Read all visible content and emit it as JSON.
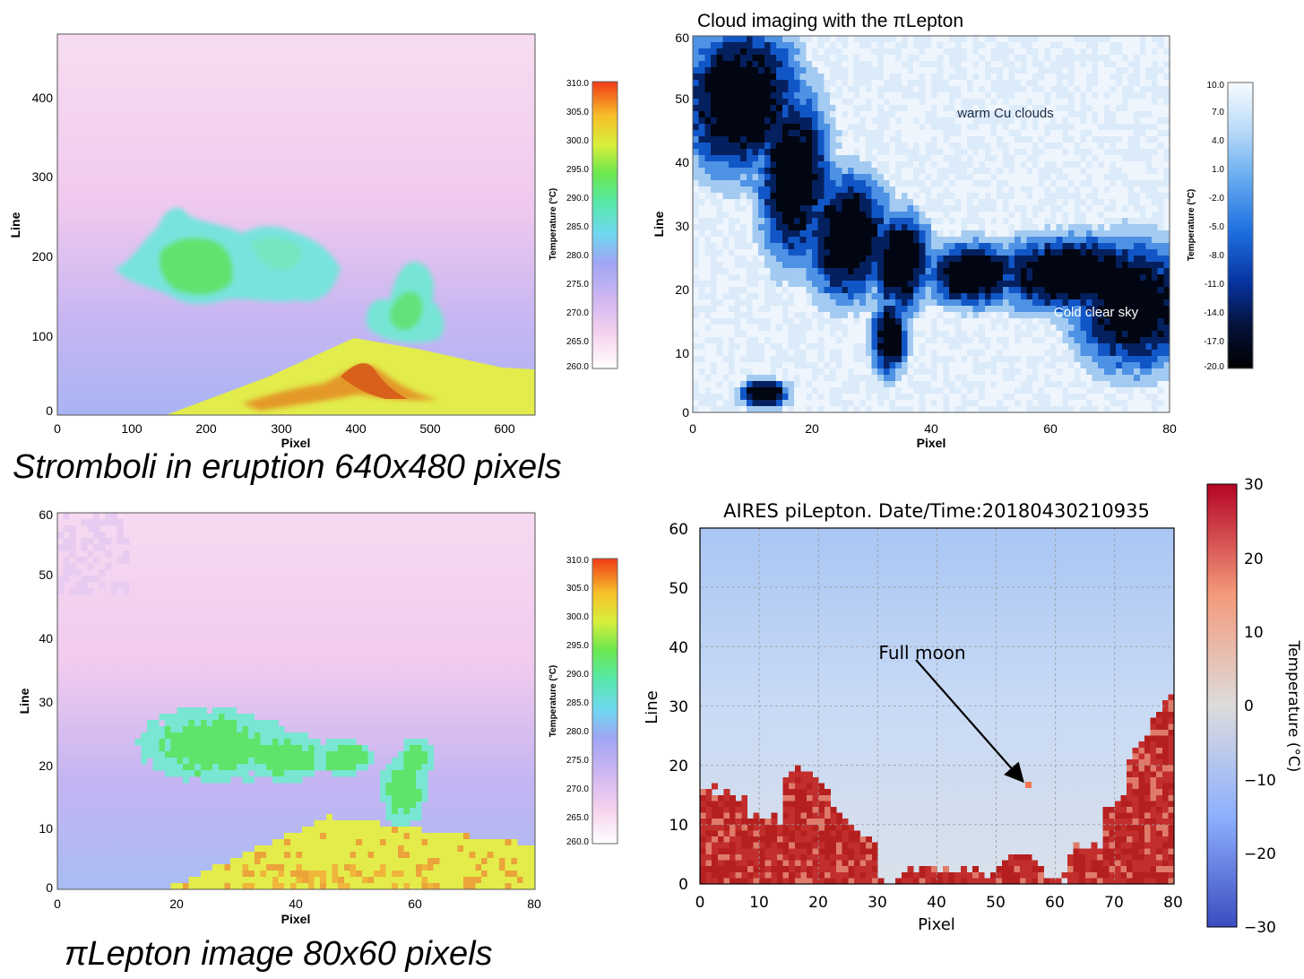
{
  "captions": {
    "full_res": "Stromboli in eruption 640x480 pixels",
    "low_res": "πLepton image 80x60 pixels"
  },
  "panels": {
    "stromboli_full": {
      "xlabel": "Pixel",
      "ylabel": "Line",
      "xticks": [
        "0",
        "100",
        "200",
        "300",
        "400",
        "500",
        "600"
      ],
      "yticks": [
        "0",
        "100",
        "200",
        "300",
        "400"
      ],
      "xlim": [
        0,
        640
      ],
      "ylim": [
        0,
        480
      ],
      "colorbar": {
        "label": "Temperature (°C)",
        "ticks": [
          "310.0",
          "305.0",
          "300.0",
          "295.0",
          "290.0",
          "285.0",
          "280.0",
          "275.0",
          "270.0",
          "265.0",
          "260.0"
        ]
      }
    },
    "stromboli_lepton": {
      "xlabel": "Pixel",
      "ylabel": "Line",
      "xticks": [
        "0",
        "20",
        "40",
        "60",
        "80"
      ],
      "yticks": [
        "0",
        "10",
        "20",
        "30",
        "40",
        "50",
        "60"
      ],
      "xlim": [
        0,
        80
      ],
      "ylim": [
        0,
        60
      ],
      "colorbar": {
        "label": "Temperature (°C)",
        "ticks": [
          "310.0",
          "305.0",
          "300.0",
          "295.0",
          "290.0",
          "285.0",
          "280.0",
          "275.0",
          "270.0",
          "265.0",
          "260.0"
        ]
      }
    },
    "clouds": {
      "title": "Cloud imaging with the πLepton",
      "xlabel": "Pixel",
      "ylabel": "Line",
      "xticks": [
        "0",
        "20",
        "40",
        "60",
        "80"
      ],
      "yticks": [
        "0",
        "10",
        "20",
        "30",
        "40",
        "50",
        "60"
      ],
      "xlim": [
        0,
        80
      ],
      "ylim": [
        0,
        60
      ],
      "annotations": [
        "warm Cu clouds",
        "Cold clear sky"
      ],
      "colorbar": {
        "label": "Temperature (°C)",
        "ticks": [
          "10.0",
          "7.0",
          "4.0",
          "1.0",
          "-2.0",
          "-5.0",
          "-8.0",
          "-11.0",
          "-14.0",
          "-17.0",
          "-20.0"
        ]
      }
    },
    "moon": {
      "title": "AIRES piLepton.  Date/Time:20180430210935",
      "xlabel": "Pixel",
      "ylabel": "Line",
      "xticks": [
        "0",
        "10",
        "20",
        "30",
        "40",
        "50",
        "60",
        "70",
        "80"
      ],
      "yticks": [
        "0",
        "10",
        "20",
        "30",
        "40",
        "50",
        "60"
      ],
      "xlim": [
        0,
        80
      ],
      "ylim": [
        0,
        60
      ],
      "annotation": "Full moon",
      "colorbar": {
        "label": "Temperature (°C)",
        "ticks": [
          "30",
          "20",
          "10",
          "0",
          "−10",
          "−20",
          "−30"
        ]
      }
    }
  },
  "colors": {
    "sky_pink": "#f6d7ef",
    "sky_lavender": "#b8acf0",
    "plume_green": "#59e36a",
    "plume_cyan": "#76e6d8",
    "volcano_yellow": "#e5ee4a",
    "lava_orange": "#e2701e",
    "cloud_white": "#f4f8fd",
    "cloud_blue": "#5e9be6",
    "sky_black": "#020612",
    "moon_sky": "#c9daf4",
    "moon_cloud_red": "#c8302f"
  }
}
